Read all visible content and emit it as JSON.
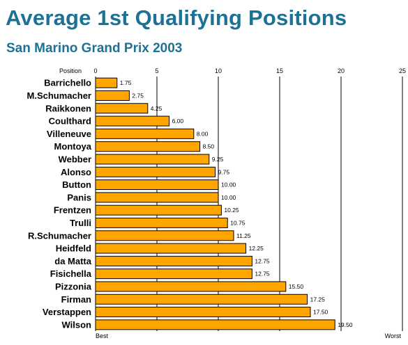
{
  "chart_data": {
    "type": "bar",
    "orientation": "horizontal",
    "title": "Average 1st Qualifying Positions",
    "subtitle": "San Marino Grand Prix 2003",
    "axis_label": "Position",
    "x_ticks": [
      0,
      5,
      10,
      15,
      20,
      25
    ],
    "xlim": [
      0,
      25
    ],
    "scale_left_label": "Best",
    "scale_right_label": "Worst",
    "grid": "vertical",
    "bar_color": "#ffa500",
    "title_color": "#1e7196",
    "categories": [
      "Barrichello",
      "M.Schumacher",
      "Raikkonen",
      "Coulthard",
      "Villeneuve",
      "Montoya",
      "Webber",
      "Alonso",
      "Button",
      "Panis",
      "Frentzen",
      "Trulli",
      "R.Schumacher",
      "Heidfeld",
      "da Matta",
      "Fisichella",
      "Pizzonia",
      "Firman",
      "Verstappen",
      "Wilson"
    ],
    "values": [
      1.75,
      2.75,
      4.25,
      6.0,
      8.0,
      8.5,
      9.25,
      9.75,
      10.0,
      10.0,
      10.25,
      10.75,
      11.25,
      12.25,
      12.75,
      12.75,
      15.5,
      17.25,
      17.5,
      19.5
    ],
    "value_labels": [
      "1.75",
      "2.75",
      "4.25",
      "6.00",
      "8.00",
      "8.50",
      "9.25",
      "9.75",
      "10.00",
      "10.00",
      "10.25",
      "10.75",
      "11.25",
      "12.25",
      "12.75",
      "12.75",
      "15.50",
      "17.25",
      "17.50",
      "19.50"
    ]
  }
}
